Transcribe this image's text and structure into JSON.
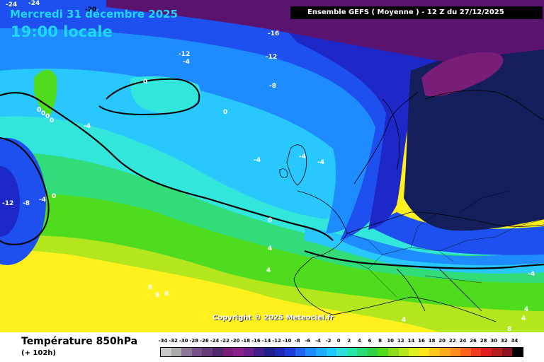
{
  "header": {
    "date": "Mercredi 31 décembre 2025",
    "local_time": "19:00 locale",
    "run_info": "Ensemble GEFS  ( Moyenne )  - 12 Z du 27/12/2025"
  },
  "copyright": "Copyright © 2025 Meteociel.fr",
  "footer": {
    "parameter": "Température 850hPa",
    "lead_time": "(+ 102h)"
  },
  "scale": {
    "labels": [
      "-34",
      "-32",
      "-30",
      "-28",
      "-26",
      "-24",
      "-22",
      "-20",
      "-18",
      "-16",
      "-14",
      "-12",
      "-10",
      "-8",
      "-6",
      "-4",
      "-2",
      "0",
      "2",
      "4",
      "6",
      "8",
      "10",
      "12",
      "14",
      "16",
      "18",
      "20",
      "22",
      "24",
      "26",
      "28",
      "30",
      "32",
      "34"
    ],
    "colors": [
      "#c8c8c8",
      "#aaaaaa",
      "#8c7896",
      "#78508c",
      "#643c78",
      "#50286e",
      "#781e78",
      "#8c1e8c",
      "#6e1e8c",
      "#461e8c",
      "#1e1e8c",
      "#1e28b4",
      "#1e3cdc",
      "#1e64f0",
      "#1e8cff",
      "#1eaaff",
      "#1ec8ff",
      "#32dcdc",
      "#28e6aa",
      "#28dc78",
      "#32d246",
      "#50dc1e",
      "#8cdc1e",
      "#b4e61e",
      "#dcf01e",
      "#ffe61e",
      "#ffc81e",
      "#ffaa1e",
      "#ff8c1e",
      "#ff641e",
      "#f03c1e",
      "#dc1e1e",
      "#b41e1e",
      "#8c141e",
      "#000000"
    ]
  },
  "contour_labels": [
    "-24",
    "-24",
    "-20",
    "-16",
    "-12",
    "-12",
    "-4",
    "-8",
    "0",
    "0",
    "-4",
    "0",
    "0",
    "0",
    "0",
    "-4",
    "-4",
    "-4",
    "-12",
    "-8",
    "-4",
    "0",
    "0",
    "4",
    "4",
    "8",
    "8",
    "8",
    "4",
    "8",
    "4",
    "4",
    "-4"
  ],
  "colors": {
    "purple": "#5a1470",
    "navy": "#141e5a",
    "dark_blue": "#1e28c8",
    "blue": "#1e50f0",
    "light_blue": "#1e8cff",
    "cyan": "#28c8ff",
    "turquoise": "#32e6dc",
    "green": "#32dc78",
    "lime": "#50dc1e",
    "yellow_green": "#b4e61e",
    "yellow": "#fff01e"
  }
}
